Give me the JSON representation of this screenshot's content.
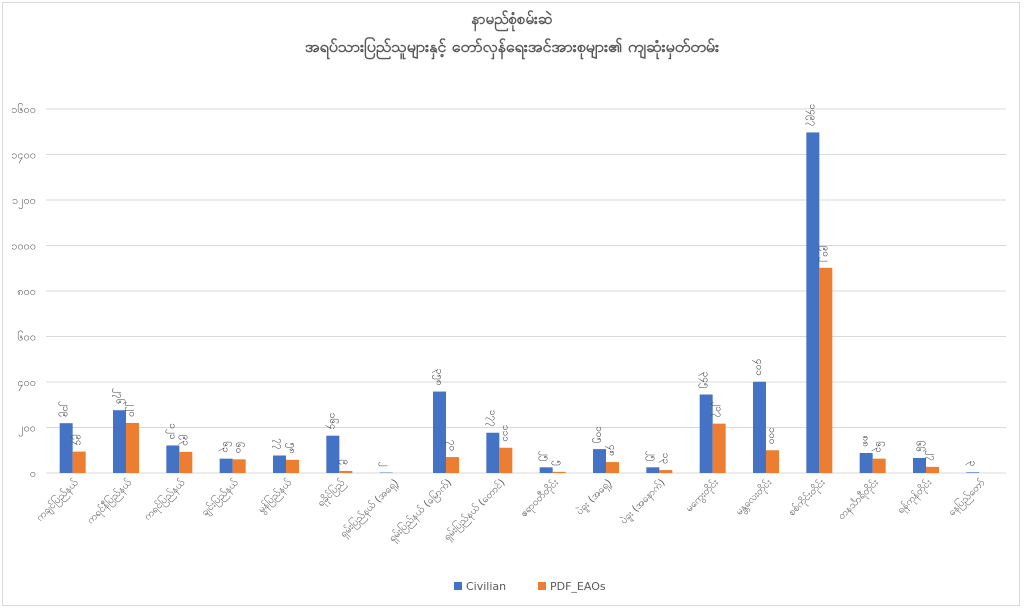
{
  "chart_data": {
    "type": "bar",
    "title": "နာမည်စုံစမ်းဆဲ",
    "subtitle": "အရပ်သားပြည်သူများနှင့် တော်လှန်ရေးအင်အားစုများ၏ ကျဆုံးမှတ်တမ်း",
    "xlabel": "",
    "ylabel": "",
    "ylim": [
      0,
      1600
    ],
    "yticks": [
      0,
      200,
      400,
      600,
      800,
      1000,
      1200,
      1400,
      1600
    ],
    "ytick_labels": [
      "၀",
      "၂၀၀",
      "၄၀၀",
      "၆၀၀",
      "၈၀၀",
      "၁၀၀၀",
      "၁၂၀၀",
      "၁၄၀၀",
      "၁၆၀၀"
    ],
    "grid": true,
    "legend_position": "bottom",
    "categories": [
      "ကချင်ပြည်နယ်",
      "ကရင်နီပြည်နယ်",
      "ကရင်ပြည်နယ်",
      "ချင်းပြည်နယ်",
      "မွန်ပြည်နယ်",
      "ရခိုင်ပြည်",
      "ရှမ်းပြည်နယ် (အရှေ့)",
      "ရှမ်းပြည်နယ် (မြောက်)",
      "ရှမ်းပြည်နယ် (တောင်)",
      "ဧရာဝတီတိုင်း",
      "ပဲခူး (အရှေ့)",
      "ပဲခူး (အနောက်)",
      "မကွေးတိုင်း",
      "မန္တလေးတိုင်း",
      "စစ်ကိုင်းတိုင်း",
      "တနင်္သာရီတိုင်း",
      "ရန်ကုန်တိုင်း",
      "နေပြည်တော်"
    ],
    "series": [
      {
        "name": "Civilian",
        "color": "#4472C4",
        "values": [
          219,
          276,
          121,
          63,
          77,
          164,
          2,
          358,
          177,
          25,
          105,
          25,
          345,
          401,
          1497,
          88,
          66,
          3
        ],
        "labels": [
          "၂၁၉",
          "၂၇၆",
          "၁၂၁",
          "၆၃",
          "၇၇",
          "၁၆၄",
          "၂",
          "၃၅၈",
          "၁၇၇",
          "၂၅",
          "၁၀၅",
          "၂၅",
          "၃၄၅",
          "၄၀၁",
          "၁၄၉၇",
          "၈၈",
          "၆၆",
          "၃"
        ]
      },
      {
        "name": "PDF_EAOs",
        "color": "#ED7D31",
        "values": [
          94,
          220,
          93,
          60,
          58,
          9,
          0,
          70,
          111,
          5,
          48,
          13,
          217,
          100,
          902,
          63,
          27,
          0
        ],
        "labels": [
          "၉၄",
          "၂၂၀",
          "၉၃",
          "၆၀",
          "၅၈",
          "၉",
          "",
          "၇၀",
          "၁၁၁",
          "၅",
          "၄၈",
          "၁၃",
          "၂၁၇",
          "၁၀၀",
          "၉၀၂",
          "၆၃",
          "၂၇",
          ""
        ]
      }
    ]
  }
}
